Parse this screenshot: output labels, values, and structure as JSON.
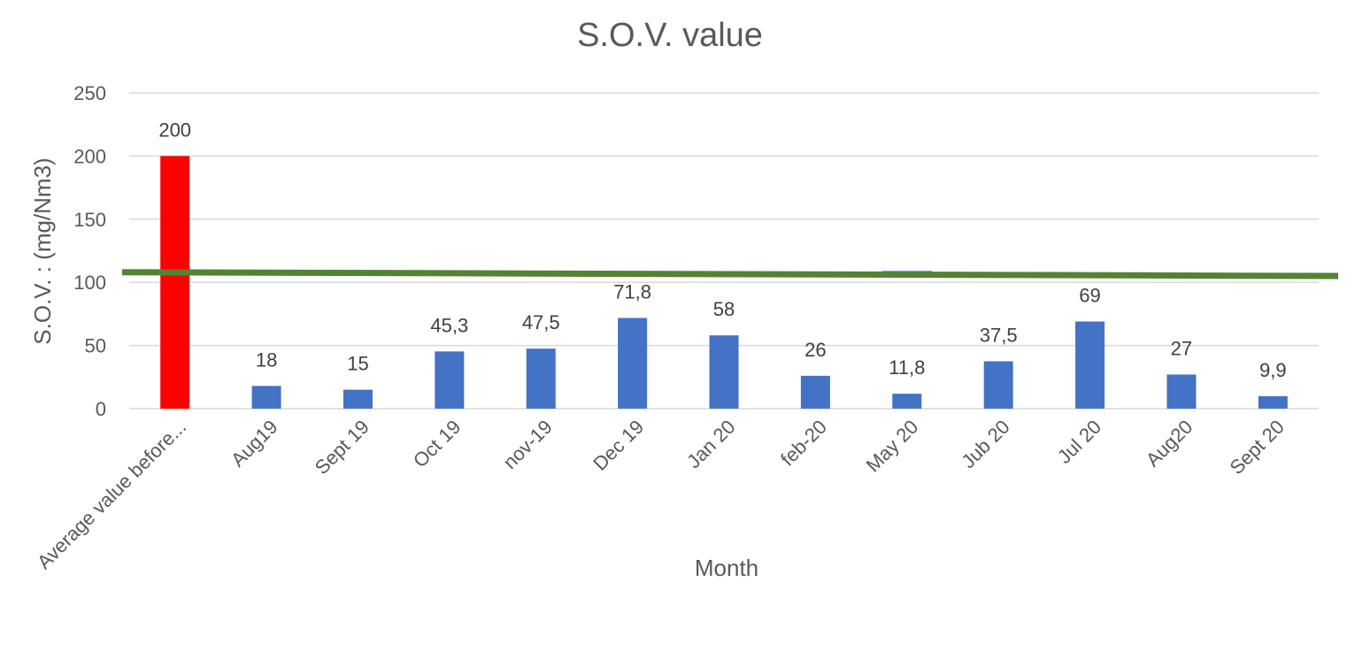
{
  "chart_data": {
    "type": "bar",
    "title": "S.O.V.  value",
    "xlabel": "Month",
    "ylabel": "S.O.V. : (mg/Nm3)",
    "ylim": [
      0,
      250
    ],
    "yticks": [
      0,
      50,
      100,
      150,
      200,
      250
    ],
    "grid": true,
    "legend": "none",
    "categories": [
      "Average value before...",
      "Aug19",
      "Sept 19",
      "Oct 19",
      "nov-19",
      "Dec 19",
      "Jan 20",
      "feb-20",
      "May 20",
      "Jub 20",
      "Jul 20",
      "Aug20",
      "Sept 20"
    ],
    "values": [
      200,
      18,
      15,
      45.3,
      47.5,
      71.8,
      58,
      26,
      11.8,
      37.5,
      69,
      27,
      9.9
    ],
    "data_labels": [
      "200",
      "18",
      "15",
      "45,3",
      "47,5",
      "71,8",
      "58",
      "26",
      "11,8",
      "37,5",
      "69",
      "27",
      "9,9"
    ],
    "bar_colors": [
      "#ff0000",
      "#4472c4",
      "#4472c4",
      "#4472c4",
      "#4472c4",
      "#4472c4",
      "#4472c4",
      "#4472c4",
      "#4472c4",
      "#4472c4",
      "#4472c4",
      "#4472c4",
      "#4472c4"
    ],
    "reference_line": {
      "type": "line",
      "y_start": 108,
      "y_end": 105,
      "color": "#548235"
    },
    "extra_marks": [
      {
        "type": "bar",
        "category": "May 20",
        "y_from": 104,
        "y_to": 109,
        "color": "#4472c4"
      }
    ]
  }
}
